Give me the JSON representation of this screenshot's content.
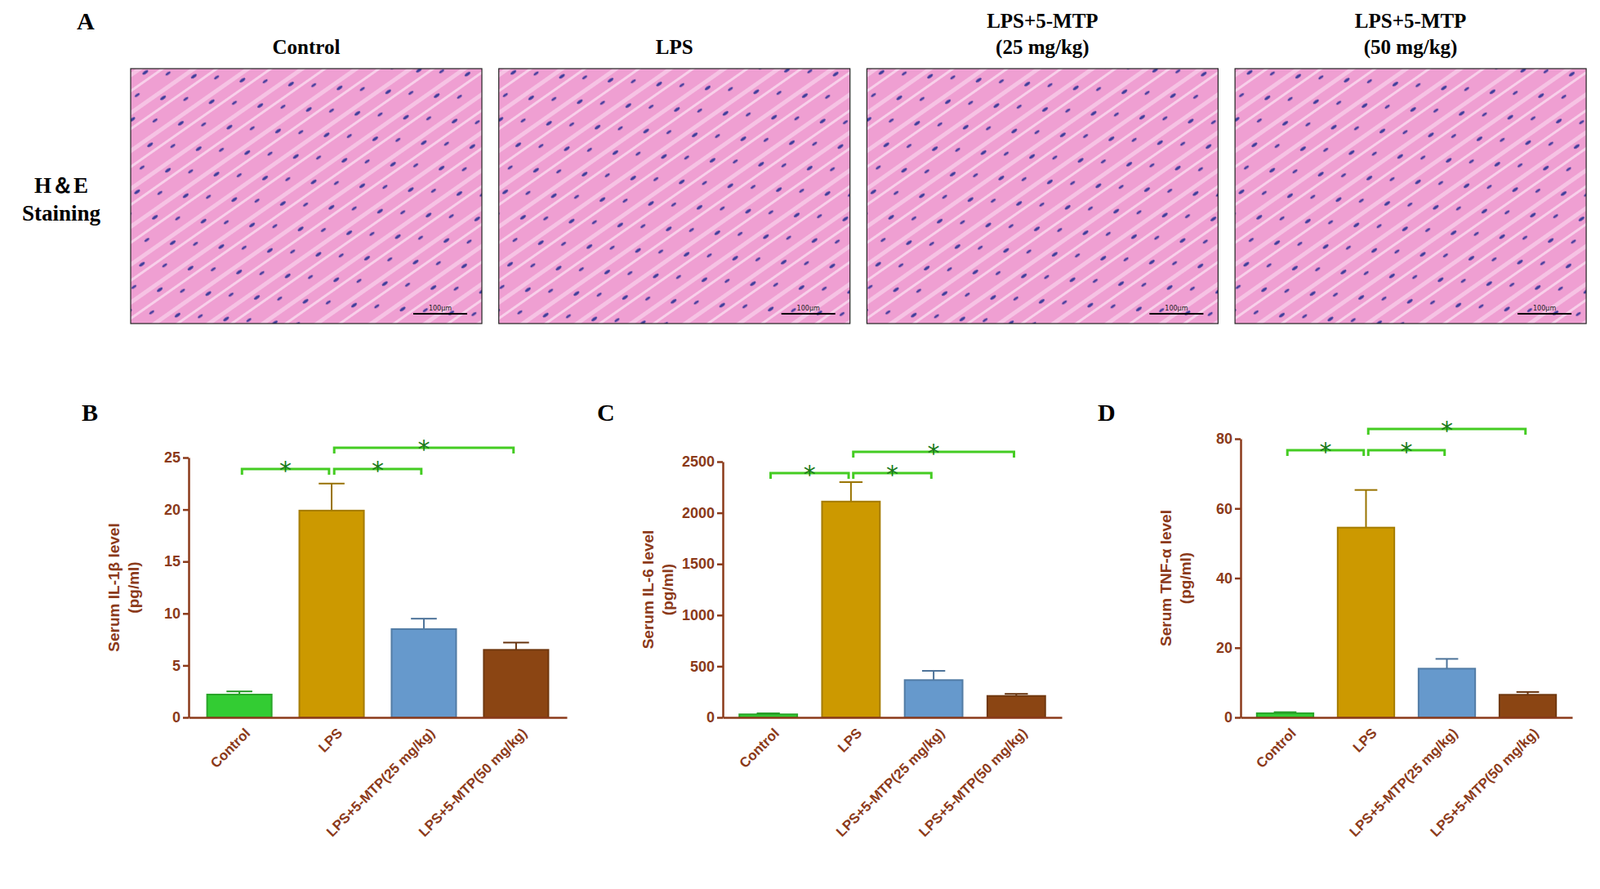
{
  "panel_labels": [
    "A",
    "B",
    "C",
    "D"
  ],
  "histology": {
    "row_label": [
      "H＆E",
      "Staining"
    ],
    "scale_bar": "100μm",
    "panels": [
      {
        "title": [
          "Control"
        ]
      },
      {
        "title": [
          "LPS"
        ]
      },
      {
        "title": [
          "LPS+5-MTP",
          "(25 mg/kg)"
        ]
      },
      {
        "title": [
          "LPS+5-MTP",
          "(50 mg/kg)"
        ]
      }
    ]
  },
  "chart_data": [
    {
      "type": "bar",
      "ylabel": [
        "Serum IL-1β level",
        "(pg/ml)"
      ],
      "categories": [
        "Control",
        "LPS",
        "LPS+5-MTP(25 mg/kg)",
        "LPS+5-MTP(50 mg/kg)"
      ],
      "values": [
        2.2,
        19.9,
        8.5,
        6.5
      ],
      "errors": [
        0.3,
        2.6,
        1.0,
        0.7
      ],
      "colors": [
        "#33cc33",
        "#cc9900",
        "#6699cc",
        "#8b4513"
      ],
      "ylim": [
        0,
        25
      ],
      "yticks": [
        0,
        5,
        10,
        15,
        20,
        25
      ],
      "annotations": [
        {
          "text": "*",
          "between": [
            "Control",
            "LPS"
          ]
        },
        {
          "text": "*",
          "between": [
            "LPS",
            "LPS+5-MTP(25 mg/kg)"
          ]
        },
        {
          "text": "*",
          "between": [
            "LPS",
            "LPS+5-MTP(50 mg/kg)"
          ]
        }
      ]
    },
    {
      "type": "bar",
      "ylabel": [
        "Serum IL-6 level",
        "(pg/ml)"
      ],
      "categories": [
        "Control",
        "LPS",
        "LPS+5-MTP(25 mg/kg)",
        "LPS+5-MTP(50 mg/kg)"
      ],
      "values": [
        30,
        2110,
        365,
        210
      ],
      "errors": [
        10,
        190,
        90,
        20
      ],
      "colors": [
        "#33cc33",
        "#cc9900",
        "#6699cc",
        "#8b4513"
      ],
      "ylim": [
        0,
        2500
      ],
      "yticks": [
        0,
        500,
        1000,
        1500,
        2000,
        2500
      ],
      "annotations": [
        {
          "text": "*",
          "between": [
            "Control",
            "LPS"
          ]
        },
        {
          "text": "*",
          "between": [
            "LPS",
            "LPS+5-MTP(25 mg/kg)"
          ]
        },
        {
          "text": "*",
          "between": [
            "LPS",
            "LPS+5-MTP(50 mg/kg)"
          ]
        }
      ]
    },
    {
      "type": "bar",
      "ylabel": [
        "Serum TNF-α level",
        "(pg/ml)"
      ],
      "categories": [
        "Control",
        "LPS",
        "LPS+5-MTP(25 mg/kg)",
        "LPS+5-MTP(50 mg/kg)"
      ],
      "values": [
        1.2,
        54.5,
        14,
        6.5
      ],
      "errors": [
        0.3,
        10.8,
        2.8,
        0.8
      ],
      "colors": [
        "#33cc33",
        "#cc9900",
        "#6699cc",
        "#8b4513"
      ],
      "ylim": [
        0,
        80
      ],
      "yticks": [
        0,
        20,
        40,
        60,
        80
      ],
      "annotations": [
        {
          "text": "*",
          "between": [
            "Control",
            "LPS"
          ]
        },
        {
          "text": "*",
          "between": [
            "LPS",
            "LPS+5-MTP(25 mg/kg)"
          ]
        },
        {
          "text": "*",
          "between": [
            "LPS",
            "LPS+5-MTP(50 mg/kg)"
          ]
        }
      ]
    }
  ]
}
